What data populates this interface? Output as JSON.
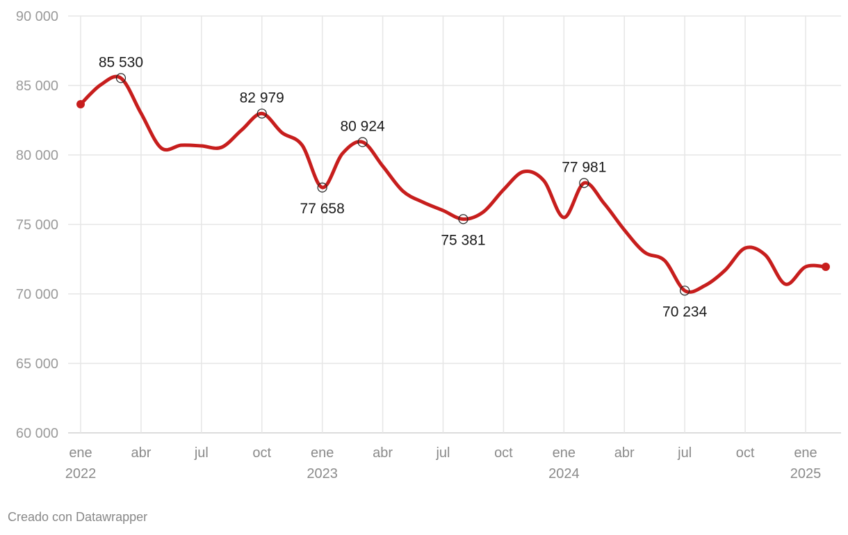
{
  "chart_data": {
    "type": "line",
    "ylim": [
      60000,
      90000
    ],
    "yticks": [
      60000,
      65000,
      70000,
      75000,
      80000,
      85000,
      90000
    ],
    "ytick_labels": [
      "60 000",
      "65 000",
      "70 000",
      "75 000",
      "80 000",
      "85 000",
      "90 000"
    ],
    "xlim": [
      "2022-01",
      "2025-01"
    ],
    "xticks": [
      {
        "month": "2022-01",
        "label": "ene",
        "year": "2022"
      },
      {
        "month": "2022-04",
        "label": "abr",
        "year": ""
      },
      {
        "month": "2022-07",
        "label": "jul",
        "year": ""
      },
      {
        "month": "2022-10",
        "label": "oct",
        "year": ""
      },
      {
        "month": "2023-01",
        "label": "ene",
        "year": "2023"
      },
      {
        "month": "2023-04",
        "label": "abr",
        "year": ""
      },
      {
        "month": "2023-07",
        "label": "jul",
        "year": ""
      },
      {
        "month": "2023-10",
        "label": "oct",
        "year": ""
      },
      {
        "month": "2024-01",
        "label": "ene",
        "year": "2024"
      },
      {
        "month": "2024-04",
        "label": "abr",
        "year": ""
      },
      {
        "month": "2024-07",
        "label": "jul",
        "year": ""
      },
      {
        "month": "2024-10",
        "label": "oct",
        "year": ""
      },
      {
        "month": "2025-01",
        "label": "ene",
        "year": "2025"
      }
    ],
    "grid": true,
    "line_color": "#c71e1d",
    "series": [
      {
        "x": [
          "2022-01",
          "2022-02",
          "2022-03",
          "2022-04",
          "2022-05",
          "2022-06",
          "2022-07",
          "2022-08",
          "2022-09",
          "2022-10",
          "2022-11",
          "2022-12",
          "2023-01",
          "2023-02",
          "2023-03",
          "2023-04",
          "2023-05",
          "2023-06",
          "2023-07",
          "2023-08",
          "2023-09",
          "2023-10",
          "2023-11",
          "2023-12",
          "2024-01",
          "2024-02",
          "2024-03",
          "2024-04",
          "2024-05",
          "2024-06",
          "2024-07",
          "2024-08",
          "2024-09",
          "2024-10",
          "2024-11",
          "2024-12",
          "2025-01",
          "2025-02"
        ],
        "y": [
          83650,
          85050,
          85530,
          83000,
          80500,
          80700,
          80650,
          80550,
          81800,
          82979,
          81600,
          80700,
          77658,
          80100,
          80924,
          79200,
          77400,
          76600,
          76000,
          75381,
          75900,
          77500,
          78800,
          78150,
          75500,
          77981,
          76500,
          74600,
          73000,
          72400,
          70234,
          70600,
          71700,
          73300,
          72800,
          70700,
          71950,
          71950
        ]
      }
    ],
    "annotations": [
      {
        "month": "2022-03",
        "value": 85530,
        "label": "85 530",
        "position": "above"
      },
      {
        "month": "2022-10",
        "value": 82979,
        "label": "82 979",
        "position": "above"
      },
      {
        "month": "2023-01",
        "value": 77658,
        "label": "77 658",
        "position": "below"
      },
      {
        "month": "2023-03",
        "value": 80924,
        "label": "80 924",
        "position": "above"
      },
      {
        "month": "2023-08",
        "value": 75381,
        "label": "75 381",
        "position": "below"
      },
      {
        "month": "2024-02",
        "value": 77981,
        "label": "77 981",
        "position": "above"
      },
      {
        "month": "2024-07",
        "value": 70234,
        "label": "70 234",
        "position": "below"
      }
    ]
  },
  "footer": {
    "credit": "Creado con Datawrapper"
  }
}
